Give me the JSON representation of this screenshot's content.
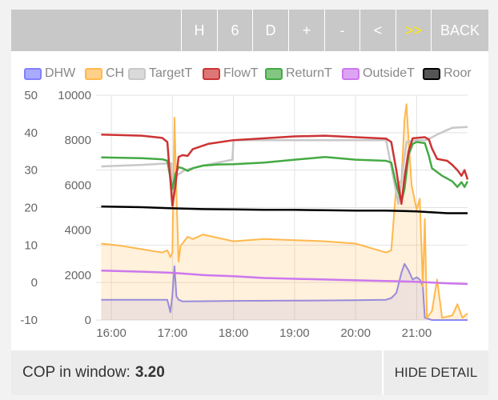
{
  "toolbar": {
    "buttons": [
      {
        "label": "H",
        "active": false
      },
      {
        "label": "6",
        "active": false
      },
      {
        "label": "D",
        "active": false
      },
      {
        "label": "+",
        "active": false
      },
      {
        "label": "-",
        "active": false
      },
      {
        "label": "<",
        "active": false
      },
      {
        "label": ">>",
        "active": true
      },
      {
        "label": "BACK",
        "active": false
      }
    ]
  },
  "legend": [
    {
      "label": "DHW",
      "color": "#8080ff"
    },
    {
      "label": "CH",
      "color": "#ffb84d"
    },
    {
      "label": "TargetT",
      "color": "#c8c8c8"
    },
    {
      "label": "FlowT",
      "color": "#cc3333"
    },
    {
      "label": "ReturnT",
      "color": "#44aa44"
    },
    {
      "label": "OutsideT",
      "color": "#cc77ee"
    },
    {
      "label": "Roor",
      "color": "#000000"
    }
  ],
  "chart_data": {
    "type": "line",
    "xlabel": "",
    "x_ticks": [
      "16:00",
      "17:00",
      "18:00",
      "19:00",
      "20:00",
      "21:00"
    ],
    "x_range": [
      "15:45",
      "21:50"
    ],
    "left_axis": {
      "label": "",
      "ticks": [
        50,
        40,
        30,
        20,
        10,
        0,
        -10
      ],
      "range": [
        -10,
        50
      ]
    },
    "right_axis": {
      "label": "",
      "ticks": [
        10000,
        8000,
        6000,
        4000,
        2000,
        0
      ],
      "range": [
        0,
        10000
      ]
    },
    "grid": true,
    "legend_position": "top",
    "series": [
      {
        "name": "FlowT",
        "axis": "left",
        "color": "#cc3333",
        "points": [
          [
            "15:50",
            39.5
          ],
          [
            "16:30",
            39.2
          ],
          [
            "16:50",
            38.6
          ],
          [
            "16:55",
            37.5
          ],
          [
            "17:00",
            20.5
          ],
          [
            "17:03",
            26
          ],
          [
            "17:06",
            33.5
          ],
          [
            "17:10",
            34
          ],
          [
            "17:15",
            33.8
          ],
          [
            "17:20",
            35.6
          ],
          [
            "17:35",
            37
          ],
          [
            "18:00",
            38
          ],
          [
            "18:30",
            38.5
          ],
          [
            "19:00",
            39
          ],
          [
            "19:30",
            39.2
          ],
          [
            "20:00",
            38.8
          ],
          [
            "20:30",
            38.4
          ],
          [
            "20:35",
            37.5
          ],
          [
            "20:40",
            30
          ],
          [
            "20:45",
            21
          ],
          [
            "20:48",
            28
          ],
          [
            "20:52",
            35
          ],
          [
            "20:56",
            38.5
          ],
          [
            "21:00",
            38.6
          ],
          [
            "21:08",
            38.8
          ],
          [
            "21:12",
            38.2
          ],
          [
            "21:15",
            35.8
          ],
          [
            "21:20",
            33
          ],
          [
            "21:30",
            32.5
          ],
          [
            "21:35",
            31.4
          ],
          [
            "21:40",
            30
          ],
          [
            "21:44",
            28.5
          ],
          [
            "21:47",
            30
          ],
          [
            "21:50",
            27.5
          ]
        ]
      },
      {
        "name": "ReturnT",
        "axis": "left",
        "color": "#44aa44",
        "points": [
          [
            "15:50",
            33.4
          ],
          [
            "16:30",
            33.2
          ],
          [
            "16:50",
            32.9
          ],
          [
            "16:55",
            32.5
          ],
          [
            "17:00",
            25
          ],
          [
            "17:03",
            29
          ],
          [
            "17:06",
            30.8
          ],
          [
            "17:10",
            30.5
          ],
          [
            "17:15",
            29.8
          ],
          [
            "17:20",
            30.5
          ],
          [
            "17:30",
            31.2
          ],
          [
            "17:45",
            31.5
          ],
          [
            "18:00",
            31.6
          ],
          [
            "18:30",
            32
          ],
          [
            "19:00",
            32.8
          ],
          [
            "19:30",
            33.5
          ],
          [
            "20:00",
            32.8
          ],
          [
            "20:30",
            32.5
          ],
          [
            "20:35",
            32
          ],
          [
            "20:40",
            26
          ],
          [
            "20:45",
            21.5
          ],
          [
            "20:48",
            25
          ],
          [
            "20:52",
            34
          ],
          [
            "20:56",
            37
          ],
          [
            "21:00",
            37.5
          ],
          [
            "21:08",
            37.2
          ],
          [
            "21:12",
            33.8
          ],
          [
            "21:15",
            30.5
          ],
          [
            "21:25",
            28.5
          ],
          [
            "21:35",
            27
          ],
          [
            "21:40",
            25.5
          ],
          [
            "21:44",
            26.8
          ],
          [
            "21:47",
            25.5
          ],
          [
            "21:50",
            27
          ]
        ]
      },
      {
        "name": "TargetT",
        "axis": "left",
        "color": "#c8c8c8",
        "points": [
          [
            "15:50",
            31
          ],
          [
            "16:30",
            31.4
          ],
          [
            "16:55",
            31.8
          ],
          [
            "16:59",
            31.8
          ],
          [
            "17:00",
            24
          ],
          [
            "17:04",
            28.5
          ],
          [
            "17:12",
            30
          ],
          [
            "17:30",
            31.2
          ],
          [
            "17:59",
            32.8
          ],
          [
            "18:00",
            38
          ],
          [
            "19:00",
            38
          ],
          [
            "20:00",
            38
          ],
          [
            "20:30",
            38
          ],
          [
            "20:42",
            21
          ],
          [
            "20:50",
            37.5
          ],
          [
            "21:00",
            38
          ],
          [
            "21:10",
            38
          ],
          [
            "21:20",
            39.5
          ],
          [
            "21:35",
            41.3
          ],
          [
            "21:50",
            41.5
          ]
        ]
      },
      {
        "name": "Roor",
        "axis": "left",
        "color": "#000000",
        "points": [
          [
            "15:50",
            20.3
          ],
          [
            "16:30",
            20.1
          ],
          [
            "17:00",
            19.8
          ],
          [
            "17:30",
            19.6
          ],
          [
            "18:00",
            19.5
          ],
          [
            "18:30",
            19.4
          ],
          [
            "19:00",
            19.4
          ],
          [
            "19:30",
            19.3
          ],
          [
            "20:00",
            19.2
          ],
          [
            "20:30",
            19.2
          ],
          [
            "21:00",
            19
          ],
          [
            "21:30",
            18.5
          ],
          [
            "21:50",
            18.5
          ]
        ]
      },
      {
        "name": "OutsideT",
        "axis": "left",
        "color": "#cc77ee",
        "points": [
          [
            "15:50",
            3.2
          ],
          [
            "16:30",
            2.9
          ],
          [
            "17:00",
            2.6
          ],
          [
            "17:30",
            2
          ],
          [
            "18:00",
            1.7
          ],
          [
            "18:30",
            1.2
          ],
          [
            "19:00",
            1
          ],
          [
            "19:30",
            0.8
          ],
          [
            "20:00",
            0.6
          ],
          [
            "20:30",
            0.4
          ],
          [
            "21:00",
            0.2
          ],
          [
            "21:30",
            -0.2
          ],
          [
            "21:50",
            -0.4
          ]
        ]
      },
      {
        "name": "CH",
        "axis": "right",
        "color": "#ffb84d",
        "points": [
          [
            "15:50",
            3400
          ],
          [
            "16:10",
            3300
          ],
          [
            "16:30",
            3150
          ],
          [
            "16:50",
            3000
          ],
          [
            "16:55",
            3100
          ],
          [
            "16:58",
            2800
          ],
          [
            "17:00",
            3000
          ],
          [
            "17:02",
            9000
          ],
          [
            "17:04",
            5600
          ],
          [
            "17:06",
            2600
          ],
          [
            "17:08",
            3300
          ],
          [
            "17:15",
            3700
          ],
          [
            "17:20",
            3600
          ],
          [
            "17:30",
            3800
          ],
          [
            "17:45",
            3650
          ],
          [
            "18:00",
            3500
          ],
          [
            "18:30",
            3600
          ],
          [
            "19:00",
            3550
          ],
          [
            "19:30",
            3500
          ],
          [
            "20:00",
            3400
          ],
          [
            "20:30",
            3000
          ],
          [
            "20:35",
            3100
          ],
          [
            "20:40",
            6000
          ],
          [
            "20:45",
            6200
          ],
          [
            "20:48",
            8900
          ],
          [
            "20:50",
            9600
          ],
          [
            "20:52",
            8000
          ],
          [
            "20:55",
            6000
          ],
          [
            "21:00",
            4900
          ],
          [
            "21:03",
            5400
          ],
          [
            "21:06",
            1500
          ],
          [
            "21:08",
            4500
          ],
          [
            "21:10",
            100
          ],
          [
            "21:15",
            400
          ],
          [
            "21:20",
            1800
          ],
          [
            "21:25",
            100
          ],
          [
            "21:35",
            200
          ],
          [
            "21:40",
            700
          ],
          [
            "21:45",
            100
          ],
          [
            "21:50",
            300
          ]
        ]
      },
      {
        "name": "DHW",
        "axis": "right",
        "color": "#8080ff",
        "points": [
          [
            "15:50",
            900
          ],
          [
            "16:55",
            900
          ],
          [
            "16:58",
            350
          ],
          [
            "17:00",
            1100
          ],
          [
            "17:02",
            2400
          ],
          [
            "17:04",
            1050
          ],
          [
            "17:06",
            900
          ],
          [
            "17:10",
            830
          ],
          [
            "18:00",
            850
          ],
          [
            "19:00",
            860
          ],
          [
            "20:00",
            880
          ],
          [
            "20:30",
            900
          ],
          [
            "20:35",
            980
          ],
          [
            "20:40",
            1200
          ],
          [
            "20:45",
            2100
          ],
          [
            "20:48",
            2500
          ],
          [
            "20:52",
            2200
          ],
          [
            "20:56",
            1800
          ],
          [
            "21:00",
            1900
          ],
          [
            "21:03",
            1800
          ],
          [
            "21:06",
            1500
          ],
          [
            "21:08",
            100
          ],
          [
            "21:15",
            0
          ],
          [
            "21:50",
            0
          ]
        ]
      }
    ]
  },
  "footer": {
    "cop_label": "COP in window:",
    "cop_value": "3.20",
    "hide_label": "HIDE DETAIL"
  }
}
